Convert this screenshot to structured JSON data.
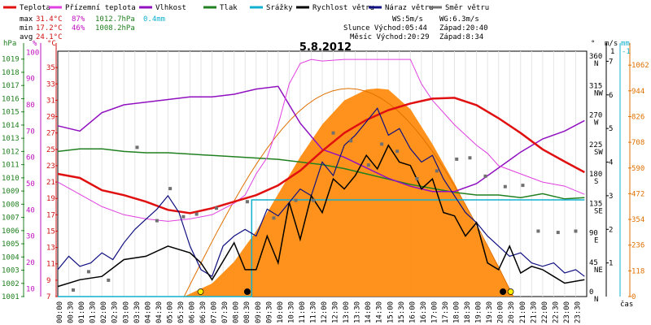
{
  "chart_data": {
    "type": "line",
    "title": "5.8.2012",
    "legend": [
      {
        "name": "Teplota",
        "color": "#e01010"
      },
      {
        "name": "Přízemní teplota",
        "color": "#e040e0"
      },
      {
        "name": "Vlhkost",
        "color": "#9010c0"
      },
      {
        "name": "Tlak",
        "color": "#208020"
      },
      {
        "name": "Srážky",
        "color": "#10b0d0"
      },
      {
        "name": "Rychlost větru",
        "color": "#000000"
      },
      {
        "name": "Náraz větru",
        "color": "#101080"
      },
      {
        "name": "Směr větru",
        "color": "#707070"
      }
    ],
    "stats": {
      "max": {
        "label": "max",
        "temp": "31.4°C",
        "hum": "87%",
        "press": "1012.7hPa",
        "rain": "0.4mm"
      },
      "min": {
        "label": "min",
        "temp": "17.2°C",
        "hum": "46%",
        "press": "1008.2hPa"
      },
      "avg": {
        "label": "avg",
        "temp": "24.1°C"
      }
    },
    "info": {
      "ws": "WS:5m/s",
      "wg": "WG:6.3m/s",
      "sun": "Slunce Východ:05:44",
      "sun_set": "Západ:20:40",
      "moon": "Měsíc Východ:20:29",
      "moon_set": "Západ:8:34"
    },
    "x_unit": "čas",
    "x_ticks": [
      "00:00",
      "00:30",
      "01:00",
      "01:30",
      "02:00",
      "02:30",
      "03:00",
      "03:30",
      "04:00",
      "04:30",
      "05:00",
      "05:30",
      "06:00",
      "06:30",
      "07:00",
      "07:30",
      "08:00",
      "08:30",
      "09:00",
      "09:30",
      "10:00",
      "10:30",
      "11:00",
      "11:30",
      "12:00",
      "12:30",
      "13:00",
      "13:30",
      "14:00",
      "14:30",
      "15:00",
      "15:30",
      "16:00",
      "16:30",
      "17:00",
      "17:30",
      "18:00",
      "18:30",
      "19:00",
      "19:30",
      "20:00",
      "20:30",
      "21:00",
      "21:30",
      "22:00",
      "22:30",
      "23:00",
      "23:30"
    ],
    "axis_hpa": {
      "label": "hPa",
      "ticks": [
        "1001",
        "1002",
        "1003",
        "1004",
        "1005",
        "1006",
        "1007",
        "1008",
        "1009",
        "1010",
        "1011",
        "1012",
        "1013",
        "1014",
        "1015",
        "1016",
        "1017",
        "1018",
        "1019"
      ],
      "color": "#208020"
    },
    "axis_pct": {
      "label": "%",
      "ticks": [
        "",
        "10",
        "20",
        "30",
        "40",
        "50",
        "60",
        "70",
        "80",
        "90",
        "100"
      ],
      "color": "#c010c0"
    },
    "axis_c": {
      "label": "°C",
      "ticks": [
        "7",
        "9",
        "11",
        "13",
        "15",
        "17",
        "19",
        "21",
        "23",
        "25",
        "27",
        "29",
        "31",
        "33",
        "35"
      ],
      "color": "#d01010"
    },
    "axis_dir": {
      "label": "°",
      "ticks": [
        {
          "deg": "0",
          "dir": "N"
        },
        {
          "deg": "45",
          "dir": "NE"
        },
        {
          "deg": "90",
          "dir": "E"
        },
        {
          "deg": "135",
          "dir": "SE"
        },
        {
          "deg": "180",
          "dir": "S"
        },
        {
          "deg": "225",
          "dir": "SW"
        },
        {
          "deg": "270",
          "dir": "W"
        },
        {
          "deg": "315",
          "dir": "NW"
        },
        {
          "deg": "360",
          "dir": "N"
        }
      ]
    },
    "axis_ms": {
      "label": "m/s",
      "ticks": [
        "1",
        "2",
        "3",
        "4",
        "5",
        "6",
        "7"
      ]
    },
    "axis_mm": {
      "label": "mm",
      "ticks": [
        "1",
        "-1"
      ],
      "color": "#10b0d0"
    },
    "axis_wm2": {
      "ticks": [
        "0",
        "118",
        "236",
        "354",
        "472",
        "590",
        "708",
        "826",
        "944",
        "1062"
      ],
      "color": "#e07000"
    },
    "series": {
      "teplota": {
        "x": [
          0,
          1,
          2,
          3,
          4,
          5,
          6,
          7,
          8,
          9,
          10,
          11,
          12,
          13,
          14,
          15,
          16,
          17,
          18,
          19,
          20,
          21,
          22,
          23,
          23.9
        ],
        "y": [
          22,
          21.5,
          20,
          19.4,
          18.6,
          17.6,
          17.2,
          17.8,
          18.6,
          19.4,
          20.6,
          22.4,
          24.8,
          27,
          28.6,
          29.8,
          30.6,
          31.2,
          31.3,
          30.4,
          28.8,
          27,
          25,
          23.5,
          22.2
        ]
      },
      "prizemni": {
        "x": [
          0,
          1,
          2,
          3,
          4,
          5,
          6,
          7,
          8,
          8.5,
          9,
          9.5,
          10,
          10.5,
          11,
          11.5,
          12,
          13,
          14,
          15,
          16,
          16.5,
          17,
          18,
          19,
          19.5,
          20,
          21,
          22,
          23,
          23.9
        ],
        "y": [
          21,
          19.5,
          18,
          17,
          16.5,
          16.2,
          16.5,
          17,
          18.4,
          19.4,
          22,
          24,
          28,
          33,
          35.5,
          36,
          35.8,
          36,
          36,
          36,
          36,
          33,
          31,
          28,
          25.5,
          24.5,
          23,
          22,
          21,
          20.5,
          19.5
        ]
      },
      "vlhkost": {
        "x": [
          0,
          1,
          2,
          3,
          4,
          5,
          6,
          7,
          8,
          9,
          10,
          11,
          12,
          13,
          14,
          15,
          16,
          17,
          18,
          19,
          20,
          21,
          22,
          23,
          23.9
        ],
        "y": [
          72,
          70,
          77,
          80,
          81,
          82,
          83,
          83,
          84,
          86,
          87,
          73,
          63,
          60,
          56,
          52,
          49,
          47,
          47,
          50,
          56,
          62,
          67,
          70,
          74
        ]
      },
      "tlak": {
        "x": [
          0,
          1,
          2,
          3,
          4,
          5,
          6,
          7,
          8,
          9,
          10,
          11,
          12,
          13,
          14,
          15,
          16,
          17,
          18,
          19,
          20,
          21,
          22,
          23,
          23.9
        ],
        "y": [
          1012,
          1012.2,
          1012.2,
          1012,
          1011.9,
          1011.9,
          1011.8,
          1011.7,
          1011.6,
          1011.5,
          1011.4,
          1011.2,
          1011,
          1010.7,
          1010.3,
          1009.9,
          1009.5,
          1009.2,
          1008.9,
          1008.7,
          1008.7,
          1008.5,
          1008.8,
          1008.4,
          1008.5
        ]
      },
      "srazky": {
        "x": [
          0,
          8.8,
          8.8,
          9.5,
          23.9
        ],
        "y": [
          0,
          0,
          0.4,
          0.4,
          0.4
        ]
      },
      "slunce": {
        "x": [
          5.73,
          7,
          8,
          9,
          10,
          11,
          12,
          13,
          14,
          14.5,
          15,
          16,
          17,
          18,
          19,
          20,
          20.67
        ],
        "y": [
          0,
          60,
          160,
          300,
          470,
          640,
          790,
          900,
          950,
          955,
          950,
          860,
          700,
          520,
          320,
          140,
          0
        ]
      },
      "rychlost": {
        "x": [
          0,
          1,
          2,
          3,
          4,
          5,
          6,
          6.5,
          7,
          8,
          8.5,
          9,
          9.5,
          10,
          10.5,
          11,
          11.5,
          12,
          12.5,
          13,
          13.5,
          14,
          14.5,
          15,
          15.5,
          16,
          16.5,
          17,
          17.5,
          18,
          18.5,
          19,
          19.5,
          20,
          20.5,
          21,
          21.5,
          22,
          22.5,
          23,
          23.9
        ],
        "y": [
          0.3,
          0.5,
          0.6,
          1.1,
          1.2,
          1.5,
          1.3,
          1.0,
          0.5,
          1.6,
          0.8,
          0.8,
          1.8,
          1.0,
          2.8,
          1.7,
          3.0,
          2.5,
          3.5,
          3.2,
          3.6,
          4.2,
          3.8,
          4.5,
          4.0,
          3.9,
          3.2,
          3.5,
          2.5,
          2.4,
          1.8,
          2.2,
          1.0,
          0.8,
          1.5,
          0.7,
          0.9,
          0.8,
          0.6,
          0.4,
          0.5
        ]
      },
      "naraz": {
        "x": [
          0,
          0.5,
          1,
          1.5,
          2,
          2.5,
          3,
          3.5,
          4,
          4.5,
          5,
          5.5,
          6,
          6.5,
          7,
          7.5,
          8,
          8.5,
          9,
          9.5,
          10,
          10.5,
          11,
          11.5,
          12,
          12.5,
          13,
          13.5,
          14,
          14.5,
          15,
          15.5,
          16,
          16.5,
          17,
          17.5,
          18,
          18.5,
          19,
          19.5,
          20,
          20.5,
          21,
          21.5,
          22,
          22.5,
          23,
          23.5,
          23.9
        ],
        "y": [
          0.8,
          1.2,
          0.9,
          1.0,
          1.3,
          1.1,
          1.6,
          2.0,
          2.3,
          2.6,
          3.0,
          2.5,
          1.5,
          0.8,
          0.6,
          1.5,
          1.8,
          2.0,
          1.8,
          2.6,
          2.4,
          2.8,
          3.2,
          3.0,
          4.0,
          3.6,
          4.5,
          4.8,
          5.2,
          5.6,
          4.8,
          5.0,
          4.4,
          4.0,
          4.2,
          3.5,
          3.0,
          2.5,
          2.2,
          1.8,
          1.5,
          1.2,
          1.3,
          1.0,
          0.9,
          1.0,
          0.7,
          0.8,
          0.6
        ]
      },
      "smer": {
        "x": [
          0.7,
          1.4,
          2.3,
          3.6,
          4.5,
          5.1,
          5.7,
          6.3,
          7.2,
          8.6,
          9.8,
          10.8,
          11.6,
          12.5,
          13.3,
          14.1,
          14.7,
          15.4,
          16.3,
          17.2,
          18.1,
          18.7,
          19.4,
          20.3,
          21.1,
          21.8,
          22.7,
          23.5
        ],
        "y": [
          10,
          38,
          25,
          228,
          116,
          165,
          122,
          126,
          135,
          145,
          120,
          147,
          147,
          250,
          238,
          201,
          233,
          222,
          180,
          192,
          210,
          212,
          184,
          168,
          170,
          100,
          98,
          100
        ]
      }
    }
  }
}
